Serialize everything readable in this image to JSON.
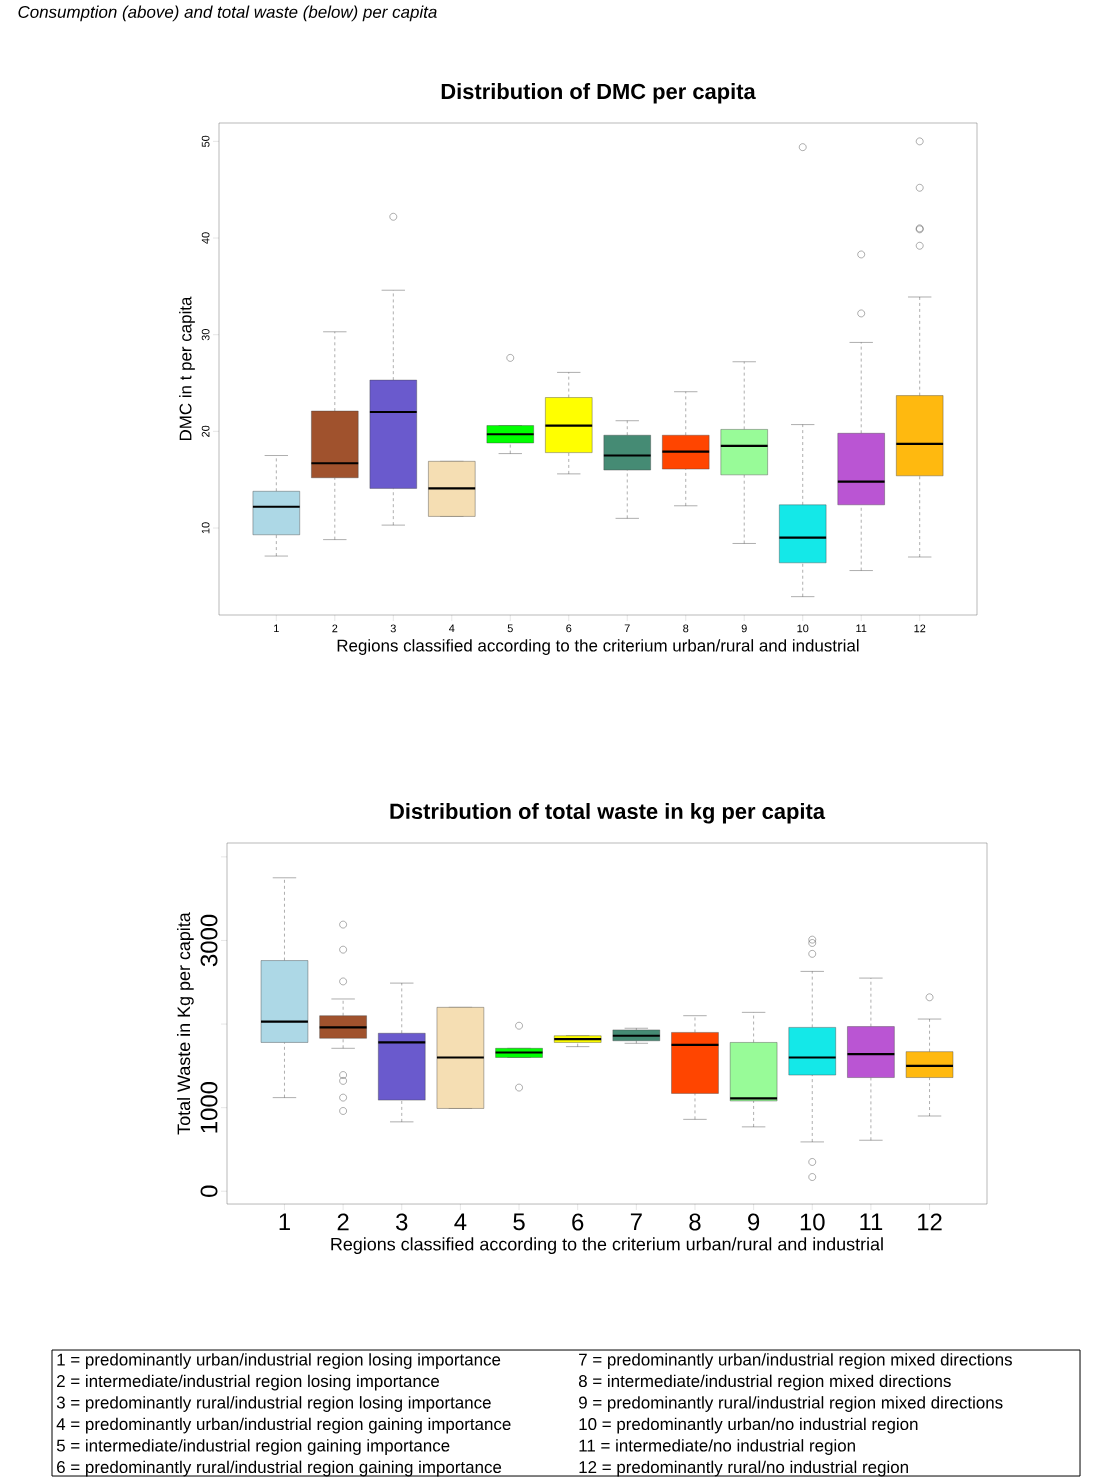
{
  "chart_data": [
    {
      "type": "box",
      "title": "Distribution of DMC per capita",
      "annotations": [
        "Consumption (above) and total waste (below) per capita"
      ],
      "xlabel": "Regions classified according to the criterium urban/rural and industrial",
      "ylabel": "DMC in t per capita",
      "categories": [
        "1",
        "2",
        "3",
        "4",
        "5",
        "6",
        "7",
        "8",
        "9",
        "10",
        "11",
        "12"
      ],
      "colors": [
        "#add8e6",
        "#a0522d",
        "#6a5acd",
        "#f5deb3",
        "#00ff00",
        "#ffff00",
        "#458b74",
        "#ff4500",
        "#98fb98",
        "#14e8e8",
        "#ba55d3",
        "#ffb90f"
      ],
      "boxes": [
        {
          "low": 7.1,
          "q1": 9.3,
          "median": 12.2,
          "q3": 13.8,
          "high": 17.5
        },
        {
          "low": 8.8,
          "q1": 15.2,
          "median": 16.7,
          "q3": 22.1,
          "high": 30.3
        },
        {
          "low": 10.3,
          "q1": 14.1,
          "median": 22.0,
          "q3": 25.3,
          "high": 34.6,
          "outliers": [
            42.2
          ]
        },
        {
          "low": 11.2,
          "q1": 11.2,
          "median": 14.1,
          "q3": 16.9,
          "high": 16.9
        },
        {
          "low": 17.7,
          "q1": 18.8,
          "median": 19.7,
          "q3": 20.6,
          "high": 20.6,
          "outliers": [
            27.6
          ]
        },
        {
          "low": 15.6,
          "q1": 17.8,
          "median": 20.6,
          "q3": 23.5,
          "high": 26.1
        },
        {
          "low": 11.0,
          "q1": 16.0,
          "median": 17.5,
          "q3": 19.6,
          "high": 21.1
        },
        {
          "low": 12.3,
          "q1": 16.1,
          "median": 17.9,
          "q3": 19.6,
          "high": 24.1
        },
        {
          "low": 8.4,
          "q1": 15.5,
          "median": 18.5,
          "q3": 20.2,
          "high": 27.2
        },
        {
          "low": 2.9,
          "q1": 6.4,
          "median": 9.0,
          "q3": 12.4,
          "high": 20.7,
          "outliers": [
            49.4
          ]
        },
        {
          "low": 5.6,
          "q1": 12.4,
          "median": 14.8,
          "q3": 19.8,
          "high": 29.2,
          "outliers": [
            38.3,
            32.2
          ]
        },
        {
          "low": 7.0,
          "q1": 15.4,
          "median": 18.7,
          "q3": 23.7,
          "high": 33.9,
          "outliers": [
            50.0,
            45.2,
            41.0,
            40.9,
            39.2
          ]
        }
      ],
      "ylim": [
        1.0,
        51.9
      ],
      "yticks": [
        10,
        20,
        30,
        40,
        50
      ]
    },
    {
      "type": "box",
      "title": "Distribution of total waste in kg per capita",
      "xlabel": "Regions classified according to the criterium urban/rural and industrial",
      "ylabel": "Total Waste in Kg per capita",
      "categories": [
        "1",
        "2",
        "3",
        "4",
        "5",
        "6",
        "7",
        "8",
        "9",
        "10",
        "11",
        "12"
      ],
      "colors": [
        "#add8e6",
        "#a0522d",
        "#6a5acd",
        "#f5deb3",
        "#00ff00",
        "#ffff00",
        "#458b74",
        "#ff4500",
        "#98fb98",
        "#14e8e8",
        "#ba55d3",
        "#ffb90f"
      ],
      "boxes": [
        {
          "low": 1120,
          "q1": 1780,
          "median": 2030,
          "q3": 2760,
          "high": 3750
        },
        {
          "low": 1710,
          "q1": 1830,
          "median": 1960,
          "q3": 2100,
          "high": 2300,
          "outliers": [
            3190,
            2890,
            2510,
            1390,
            1320,
            1120,
            960
          ]
        },
        {
          "low": 830,
          "q1": 1090,
          "median": 1780,
          "q3": 1890,
          "high": 2490
        },
        {
          "low": 990,
          "q1": 990,
          "median": 1600,
          "q3": 2200,
          "high": 2200
        },
        {
          "low": 1600,
          "q1": 1600,
          "median": 1660,
          "q3": 1710,
          "high": 1710,
          "outliers": [
            1980,
            1240
          ]
        },
        {
          "low": 1730,
          "q1": 1780,
          "median": 1820,
          "q3": 1860,
          "high": 1860
        },
        {
          "low": 1770,
          "q1": 1800,
          "median": 1860,
          "q3": 1930,
          "high": 1950
        },
        {
          "low": 860,
          "q1": 1170,
          "median": 1750,
          "q3": 1900,
          "high": 2100
        },
        {
          "low": 770,
          "q1": 1080,
          "median": 1110,
          "q3": 1780,
          "high": 2140
        },
        {
          "low": 590,
          "q1": 1390,
          "median": 1600,
          "q3": 1960,
          "high": 2630,
          "outliers": [
            3010,
            2970,
            2840,
            350,
            170
          ]
        },
        {
          "low": 610,
          "q1": 1360,
          "median": 1640,
          "q3": 1970,
          "high": 2550
        },
        {
          "low": 900,
          "q1": 1360,
          "median": 1500,
          "q3": 1670,
          "high": 2060,
          "outliers": [
            2320
          ]
        }
      ],
      "ylim": [
        -153,
        4166
      ],
      "yticks": [
        0,
        1000,
        {
          "value": 2000,
          "label": null
        },
        3000,
        {
          "value": 4000,
          "label": null
        }
      ]
    },
    {
      "type": "other",
      "annotations": [
        "1 = predominantly urban/industrial region losing importance",
        "2 = intermediate/industrial region losing importance",
        "3 = predominantly rural/industrial region losing importance",
        "4 = predominantly urban/industrial region gaining importance",
        "5 = intermediate/industrial region gaining importance",
        "6 = predominantly rural/industrial region gaining importance",
        "7 = predominantly urban/industrial region mixed directions",
        "8 = intermediate/industrial region mixed directions",
        "9 = predominantly rural/industrial region mixed directions",
        "10 = predominantly urban/no industrial region",
        "11 = intermediate/no industrial region",
        "12 = predominantly rural/no industrial region"
      ]
    }
  ]
}
